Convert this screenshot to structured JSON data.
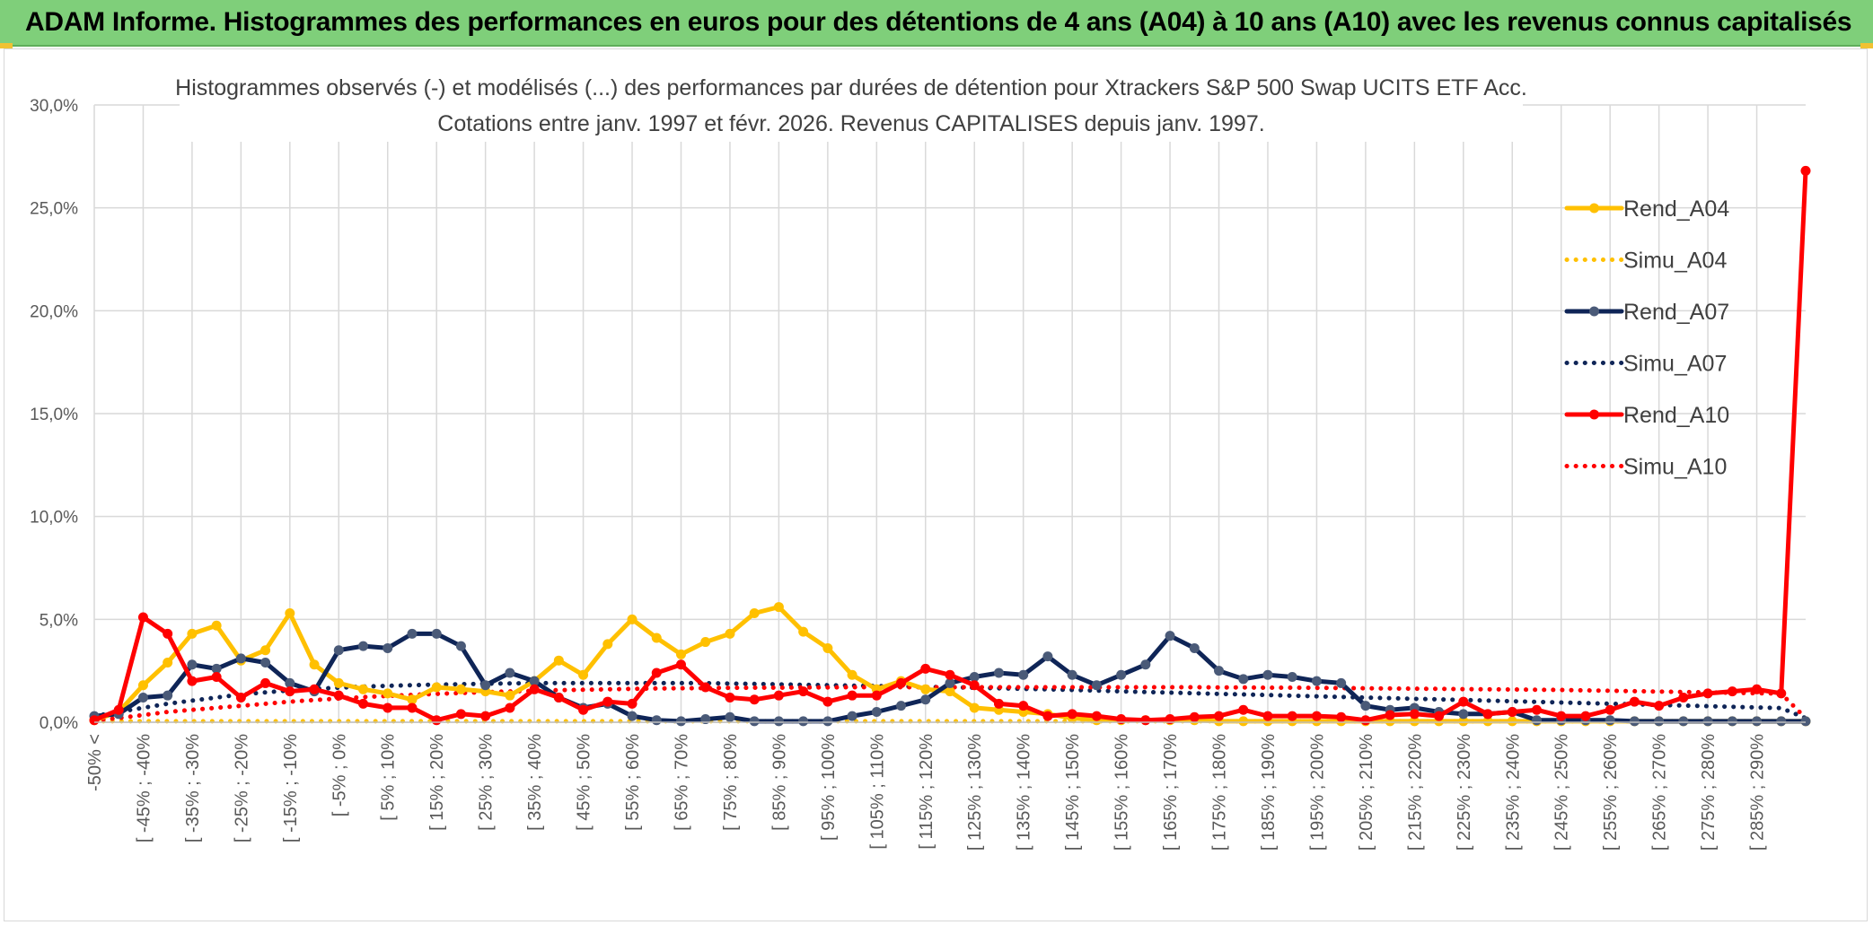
{
  "banner": {
    "title": "ADAM Informe. Histogrammes des performances en euros pour des détentions de 4 ans (A04) à 10 ans (A10) avec les revenus connus capitalisés"
  },
  "colors": {
    "banner_bg": "#7fcf7a",
    "rend_a04": "#ffc000",
    "simu_a04": "#ffc000",
    "rend_a07": "#0f2557",
    "simu_a07": "#0f2557",
    "rend_a10": "#ff0000",
    "simu_a10": "#ff0000",
    "marker_a07": "#4a5a78"
  },
  "chart_data": {
    "type": "line",
    "title_line1": "Histogrammes observés (-) et modélisés (...) des performances par durées de détention pour Xtrackers S&P 500 Swap UCITS ETF Acc.",
    "title_line2": "Cotations entre janv. 1997 et févr. 2026. Revenus CAPITALISES depuis janv. 1997.",
    "ylim": [
      0,
      30
    ],
    "y_ticks": [
      "0,0%",
      "5,0%",
      "10,0%",
      "15,0%",
      "20,0%",
      "25,0%",
      "30,0%"
    ],
    "grid": true,
    "legend_position": "right",
    "x_labels": [
      "-50% <",
      "[ -45% ; -40%",
      "[ -35% ; -30%",
      "[ -25% ; -20%",
      "[ -15% ; -10%",
      "[ -5% ; 0%",
      "[ 5% ; 10%",
      "[ 15% ; 20%",
      "[ 25% ; 30%",
      "[ 35% ; 40%",
      "[ 45% ; 50%",
      "[ 55% ; 60%",
      "[ 65% ; 70%",
      "[ 75% ; 80%",
      "[ 85% ; 90%",
      "[ 95% ; 100%",
      "[ 105% ; 110%",
      "[ 115% ; 120%",
      "[ 125% ; 130%",
      "[ 135% ; 140%",
      "[ 145% ; 150%",
      "[ 155% ; 160%",
      "[ 165% ; 170%",
      "[ 175% ; 180%",
      "[ 185% ; 190%",
      "[ 195% ; 200%",
      "[ 205% ; 210%",
      "[ 215% ; 220%",
      "[ 225% ; 230%",
      "[ 235% ; 240%",
      "[ 245% ; 250%",
      "[ 255% ; 260%",
      "[ 265% ; 270%",
      "[ 275% ; 280%",
      "[ 285% ; 290%"
    ],
    "series": [
      {
        "name": "Rend_A04",
        "style": "solid",
        "markers": true,
        "values": [
          0.1,
          0.5,
          1.8,
          2.9,
          4.3,
          4.7,
          3.0,
          3.5,
          5.3,
          2.8,
          1.9,
          1.6,
          1.4,
          1.1,
          1.7,
          1.6,
          1.5,
          1.3,
          2.0,
          3.0,
          2.3,
          3.8,
          5.0,
          4.1,
          3.3,
          3.9,
          4.3,
          5.3,
          5.6,
          4.4,
          3.6,
          2.3,
          1.6,
          2.0,
          1.6,
          1.5,
          0.7,
          0.6,
          0.5,
          0.4,
          0.2,
          0.1,
          0.1,
          0.1,
          0.1,
          0.1,
          0.05,
          0.05,
          0.05,
          0.05,
          0.05,
          0.05,
          0.05,
          0.05,
          0.05,
          0.05,
          0.05,
          0.05,
          0.05,
          0.05,
          0.05,
          0.05,
          0.05,
          0.05,
          0.05,
          0.05,
          0.05,
          0.05,
          0.05,
          0.05,
          0.05
        ]
      },
      {
        "name": "Simu_A04",
        "style": "dotted",
        "markers": false,
        "values": [
          0.05,
          0.05,
          0.05,
          0.05,
          0.05,
          0.05,
          0.05,
          0.05,
          0.05,
          0.05,
          0.05,
          0.05,
          0.05,
          0.05,
          0.05,
          0.05,
          0.05,
          0.05,
          0.05,
          0.05,
          0.05,
          0.05,
          0.05,
          0.05,
          0.05,
          0.05,
          0.05,
          0.05,
          0.05,
          0.05,
          0.05,
          0.05,
          0.05,
          0.05,
          0.05,
          0.05,
          0.05,
          0.05,
          0.05,
          0.05,
          0.05,
          0.05,
          0.05,
          0.05,
          0.05,
          0.05,
          0.05,
          0.05,
          0.05,
          0.05,
          0.05,
          0.05,
          0.05,
          0.05,
          0.05,
          0.05,
          0.05,
          0.05,
          0.05,
          0.05,
          0.05,
          0.05,
          0.05,
          0.05,
          0.05,
          0.05,
          0.05,
          0.05,
          0.05,
          0.05,
          0.05
        ]
      },
      {
        "name": "Rend_A07",
        "style": "solid",
        "markers": true,
        "values": [
          0.3,
          0.4,
          1.2,
          1.3,
          2.8,
          2.6,
          3.1,
          2.9,
          1.9,
          1.5,
          3.5,
          3.7,
          3.6,
          4.3,
          4.3,
          3.7,
          1.8,
          2.4,
          2.0,
          1.2,
          0.7,
          0.9,
          0.3,
          0.1,
          0.05,
          0.15,
          0.25,
          0.05,
          0.05,
          0.05,
          0.05,
          0.3,
          0.5,
          0.8,
          1.1,
          1.9,
          2.2,
          2.4,
          2.3,
          3.2,
          2.3,
          1.8,
          2.3,
          2.8,
          4.2,
          3.6,
          2.5,
          2.1,
          2.3,
          2.2,
          2.0,
          1.9,
          0.8,
          0.6,
          0.7,
          0.5,
          0.4,
          0.4,
          0.5,
          0.1,
          0.1,
          0.1,
          0.1,
          0.05,
          0.05,
          0.05,
          0.05,
          0.05,
          0.05,
          0.05,
          0.05
        ]
      },
      {
        "name": "Simu_A07",
        "style": "dotted",
        "markers": false,
        "values": [
          0.3,
          0.5,
          0.7,
          0.9,
          1.05,
          1.2,
          1.35,
          1.45,
          1.55,
          1.62,
          1.68,
          1.73,
          1.77,
          1.8,
          1.83,
          1.85,
          1.87,
          1.89,
          1.9,
          1.9,
          1.9,
          1.9,
          1.9,
          1.9,
          1.9,
          1.9,
          1.88,
          1.86,
          1.84,
          1.82,
          1.8,
          1.78,
          1.76,
          1.74,
          1.72,
          1.7,
          1.68,
          1.65,
          1.62,
          1.6,
          1.57,
          1.54,
          1.5,
          1.47,
          1.44,
          1.41,
          1.38,
          1.35,
          1.32,
          1.29,
          1.26,
          1.23,
          1.2,
          1.17,
          1.14,
          1.11,
          1.08,
          1.05,
          1.02,
          0.99,
          0.96,
          0.93,
          0.9,
          0.87,
          0.84,
          0.81,
          0.78,
          0.75,
          0.72,
          0.69,
          0.2
        ]
      },
      {
        "name": "Rend_A10",
        "style": "solid",
        "markers": true,
        "values": [
          0.1,
          0.6,
          5.1,
          4.3,
          2.0,
          2.2,
          1.2,
          1.9,
          1.5,
          1.6,
          1.3,
          0.9,
          0.7,
          0.7,
          0.1,
          0.4,
          0.3,
          0.7,
          1.6,
          1.2,
          0.6,
          1.0,
          0.9,
          2.4,
          2.8,
          1.7,
          1.2,
          1.1,
          1.3,
          1.5,
          1.0,
          1.3,
          1.3,
          1.9,
          2.6,
          2.3,
          1.8,
          0.9,
          0.8,
          0.3,
          0.4,
          0.3,
          0.15,
          0.1,
          0.15,
          0.25,
          0.3,
          0.6,
          0.3,
          0.3,
          0.3,
          0.25,
          0.1,
          0.35,
          0.4,
          0.3,
          1.0,
          0.4,
          0.5,
          0.6,
          0.3,
          0.3,
          0.6,
          1.0,
          0.8,
          1.2,
          1.4,
          1.5,
          1.6,
          1.4,
          26.8
        ]
      },
      {
        "name": "Simu_A10",
        "style": "dotted",
        "markers": false,
        "values": [
          0.1,
          0.2,
          0.35,
          0.5,
          0.6,
          0.7,
          0.8,
          0.9,
          1.0,
          1.08,
          1.15,
          1.22,
          1.28,
          1.33,
          1.38,
          1.42,
          1.46,
          1.5,
          1.53,
          1.56,
          1.58,
          1.6,
          1.62,
          1.64,
          1.65,
          1.66,
          1.67,
          1.68,
          1.68,
          1.69,
          1.69,
          1.7,
          1.7,
          1.7,
          1.7,
          1.7,
          1.7,
          1.7,
          1.7,
          1.7,
          1.7,
          1.7,
          1.7,
          1.7,
          1.7,
          1.7,
          1.69,
          1.69,
          1.68,
          1.68,
          1.67,
          1.66,
          1.65,
          1.64,
          1.63,
          1.62,
          1.61,
          1.6,
          1.59,
          1.58,
          1.57,
          1.55,
          1.53,
          1.51,
          1.49,
          1.47,
          1.45,
          1.43,
          1.41,
          1.39,
          0.2
        ]
      }
    ]
  }
}
